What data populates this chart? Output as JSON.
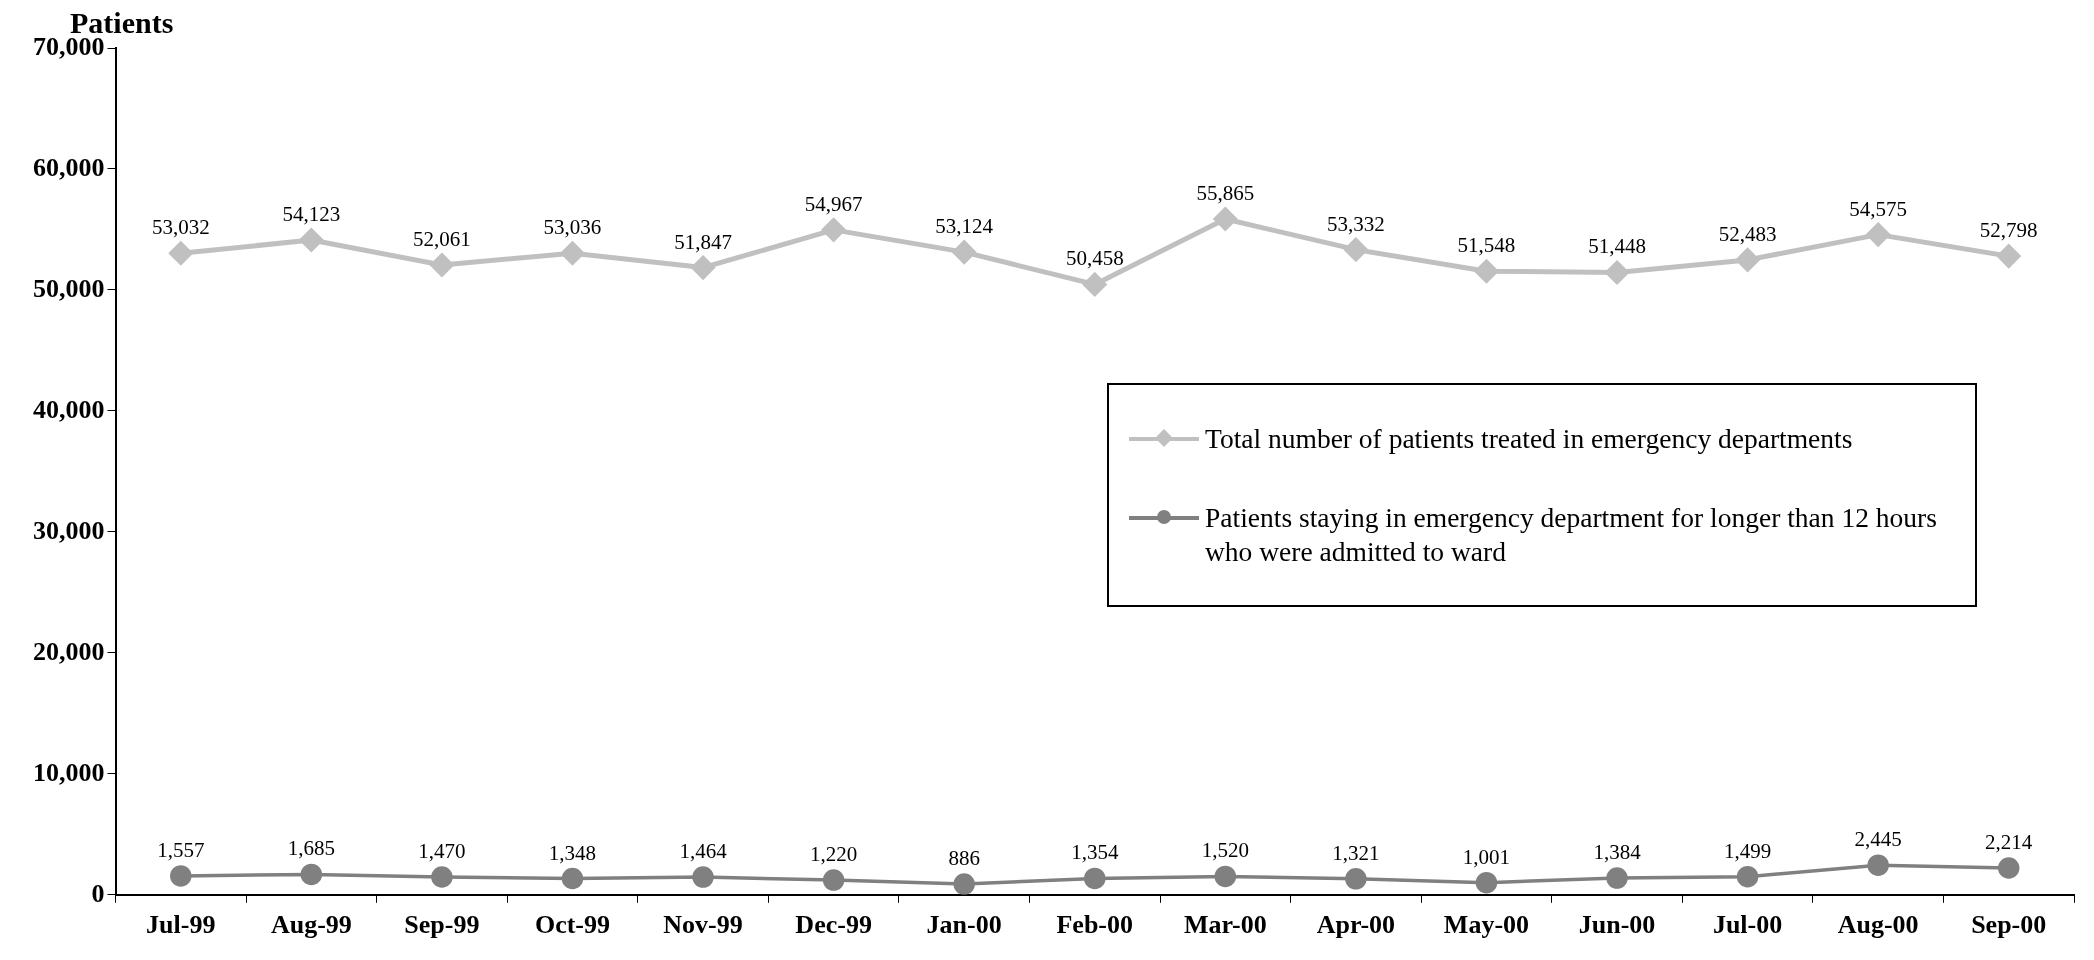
{
  "chart_data": {
    "type": "line",
    "ylabel": "Patients",
    "categories": [
      "Jul-99",
      "Aug-99",
      "Sep-99",
      "Oct-99",
      "Nov-99",
      "Dec-99",
      "Jan-00",
      "Feb-00",
      "Mar-00",
      "Apr-00",
      "May-00",
      "Jun-00",
      "Jul-00",
      "Aug-00",
      "Sep-00"
    ],
    "series": [
      {
        "name": "Total number of patients treated in emergency departments",
        "color": "#c0c0c0",
        "marker": "diamond",
        "values": [
          53032,
          54123,
          52061,
          53036,
          51847,
          54967,
          53124,
          50458,
          55865,
          53332,
          51548,
          51448,
          52483,
          54575,
          52798
        ],
        "value_labels": [
          "53,032",
          "54,123",
          "52,061",
          "53,036",
          "51,847",
          "54,967",
          "53,124",
          "50,458",
          "55,865",
          "53,332",
          "51,548",
          "51,448",
          "52,483",
          "54,575",
          "52,798"
        ]
      },
      {
        "name": "Patients staying in emergency department for longer than 12 hours who were admitted to ward",
        "color": "#808080",
        "marker": "circle",
        "values": [
          1557,
          1685,
          1470,
          1348,
          1464,
          1220,
          886,
          1354,
          1520,
          1321,
          1001,
          1384,
          1499,
          2445,
          2214
        ],
        "value_labels": [
          "1,557",
          "1,685",
          "1,470",
          "1,348",
          "1,464",
          "1,220",
          "886",
          "1,354",
          "1,520",
          "1,321",
          "1,001",
          "1,384",
          "1,499",
          "2,445",
          "2,214"
        ]
      }
    ],
    "ylim": [
      0,
      70000
    ],
    "yticks": [
      0,
      {
        "value": 10000,
        "label": "10,000"
      },
      {
        "value": 20000,
        "label": "20,000"
      },
      {
        "value": 30000,
        "label": "30,000"
      },
      {
        "value": 40000,
        "label": "40,000"
      },
      {
        "value": 50000,
        "label": "50,000"
      },
      {
        "value": 60000,
        "label": "60,000"
      },
      {
        "value": 70000,
        "label": "70,000"
      }
    ],
    "grid": false,
    "legend": "right"
  }
}
